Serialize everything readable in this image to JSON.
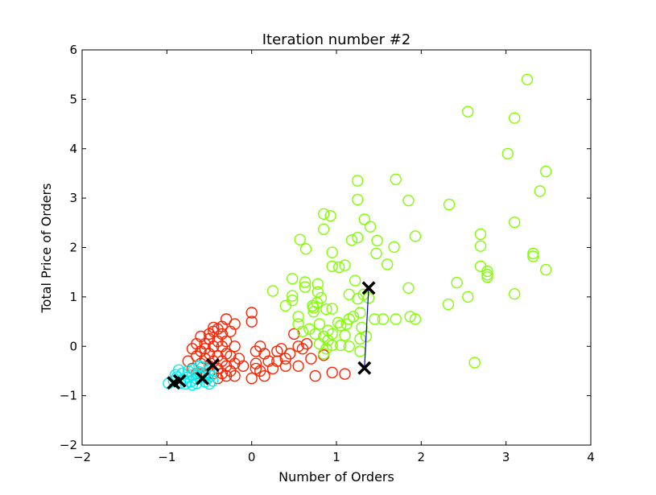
{
  "chart_data": {
    "type": "scatter",
    "title": "Iteration number #2",
    "xlabel": "Number of Orders",
    "ylabel": "Total Price of Orders",
    "xlim": [
      -2,
      4
    ],
    "ylim": [
      -2,
      6
    ],
    "xticks": [
      "−2",
      "−1",
      "0",
      "1",
      "2",
      "3",
      "4"
    ],
    "yticks": [
      "−2",
      "−1",
      "0",
      "1",
      "2",
      "3",
      "4",
      "5",
      "6"
    ],
    "grid": false,
    "colors": {
      "cluster_red": "#ff2200",
      "cluster_green": "#80ff00",
      "cluster_cyan": "#00f0f0",
      "centroid": "#000000",
      "trail": "#0000cc"
    },
    "series": [
      {
        "color": "#ff2200",
        "points": [
          [
            -0.75,
            -0.3
          ],
          [
            -0.7,
            -0.45
          ],
          [
            -0.65,
            -0.2
          ],
          [
            -0.65,
            -0.55
          ],
          [
            -0.6,
            -0.35
          ],
          [
            -0.6,
            -0.1
          ],
          [
            -0.55,
            -0.6
          ],
          [
            -0.55,
            -0.25
          ],
          [
            -0.55,
            0.05
          ],
          [
            -0.5,
            -0.4
          ],
          [
            -0.5,
            -0.15
          ],
          [
            -0.5,
            0.15
          ],
          [
            -0.45,
            -0.55
          ],
          [
            -0.45,
            -0.3
          ],
          [
            -0.45,
            0.0
          ],
          [
            -0.45,
            0.3
          ],
          [
            -0.4,
            -0.65
          ],
          [
            -0.4,
            -0.45
          ],
          [
            -0.4,
            -0.2
          ],
          [
            -0.4,
            0.1
          ],
          [
            -0.4,
            0.35
          ],
          [
            -0.35,
            -0.55
          ],
          [
            -0.35,
            -0.3
          ],
          [
            -0.35,
            0.0
          ],
          [
            -0.35,
            0.25
          ],
          [
            -0.3,
            -0.6
          ],
          [
            -0.3,
            -0.4
          ],
          [
            -0.3,
            -0.15
          ],
          [
            -0.3,
            0.1
          ],
          [
            -0.3,
            0.55
          ],
          [
            -0.25,
            -0.5
          ],
          [
            -0.25,
            -0.2
          ],
          [
            -0.25,
            0.3
          ],
          [
            -0.2,
            -0.6
          ],
          [
            -0.2,
            -0.35
          ],
          [
            -0.2,
            0.0
          ],
          [
            -0.2,
            0.45
          ],
          [
            -0.15,
            -0.25
          ],
          [
            -0.55,
            -0.05
          ],
          [
            -0.5,
            0.25
          ],
          [
            -0.45,
            0.38
          ],
          [
            -0.7,
            -0.05
          ],
          [
            -0.65,
            0.05
          ],
          [
            -0.6,
            0.2
          ],
          [
            -0.35,
            0.4
          ],
          [
            0.0,
            -0.65
          ],
          [
            0.05,
            -0.45
          ],
          [
            0.0,
            0.5
          ],
          [
            0.0,
            0.68
          ],
          [
            0.05,
            -0.35
          ],
          [
            0.1,
            -0.5
          ],
          [
            0.15,
            -0.15
          ],
          [
            0.15,
            -0.6
          ],
          [
            0.2,
            -0.3
          ],
          [
            0.25,
            -0.45
          ],
          [
            0.3,
            -0.1
          ],
          [
            0.3,
            -0.3
          ],
          [
            0.35,
            -0.05
          ],
          [
            0.4,
            -0.25
          ],
          [
            0.45,
            -0.15
          ],
          [
            0.5,
            0.25
          ],
          [
            0.55,
            0.0
          ],
          [
            0.6,
            -0.05
          ],
          [
            0.65,
            0.05
          ],
          [
            0.7,
            -0.25
          ],
          [
            0.55,
            -0.4
          ],
          [
            0.4,
            -0.4
          ],
          [
            0.75,
            -0.6
          ],
          [
            0.85,
            -0.18
          ],
          [
            0.95,
            -0.53
          ],
          [
            1.1,
            -0.56
          ],
          [
            0.1,
            0.0
          ],
          [
            -0.1,
            -0.4
          ],
          [
            0.05,
            -0.1
          ]
        ]
      },
      {
        "color": "#80ff00",
        "points": [
          [
            3.25,
            5.4
          ],
          [
            2.55,
            4.75
          ],
          [
            3.1,
            4.62
          ],
          [
            3.02,
            3.9
          ],
          [
            3.47,
            3.54
          ],
          [
            1.7,
            3.38
          ],
          [
            1.25,
            3.35
          ],
          [
            3.4,
            3.14
          ],
          [
            1.25,
            2.97
          ],
          [
            1.85,
            2.95
          ],
          [
            2.33,
            2.87
          ],
          [
            0.85,
            2.68
          ],
          [
            0.93,
            2.64
          ],
          [
            1.33,
            2.57
          ],
          [
            1.4,
            2.42
          ],
          [
            0.85,
            2.37
          ],
          [
            2.7,
            2.27
          ],
          [
            1.93,
            2.23
          ],
          [
            1.25,
            2.2
          ],
          [
            1.18,
            2.15
          ],
          [
            0.57,
            2.16
          ],
          [
            1.48,
            2.14
          ],
          [
            1.68,
            2.01
          ],
          [
            2.7,
            2.03
          ],
          [
            3.1,
            2.51
          ],
          [
            0.64,
            1.97
          ],
          [
            0.95,
            1.9
          ],
          [
            1.47,
            1.88
          ],
          [
            3.32,
            1.88
          ],
          [
            3.32,
            1.82
          ],
          [
            0.95,
            1.62
          ],
          [
            1.03,
            1.6
          ],
          [
            1.1,
            1.64
          ],
          [
            1.6,
            1.66
          ],
          [
            2.7,
            1.62
          ],
          [
            2.78,
            1.52
          ],
          [
            2.78,
            1.45
          ],
          [
            2.78,
            1.4
          ],
          [
            3.47,
            1.55
          ],
          [
            0.48,
            1.37
          ],
          [
            0.63,
            1.3
          ],
          [
            0.63,
            1.2
          ],
          [
            0.78,
            1.26
          ],
          [
            1.22,
            1.33
          ],
          [
            2.42,
            1.29
          ],
          [
            1.85,
            1.18
          ],
          [
            0.25,
            1.12
          ],
          [
            0.78,
            1.1
          ],
          [
            1.15,
            1.05
          ],
          [
            1.32,
            1.05
          ],
          [
            1.38,
            0.98
          ],
          [
            1.25,
            0.96
          ],
          [
            3.1,
            1.06
          ],
          [
            2.55,
            1.0
          ],
          [
            0.48,
            1.02
          ],
          [
            0.48,
            0.93
          ],
          [
            0.82,
            0.98
          ],
          [
            0.77,
            0.88
          ],
          [
            0.72,
            0.82
          ],
          [
            0.4,
            0.82
          ],
          [
            0.73,
            0.78
          ],
          [
            0.73,
            0.7
          ],
          [
            0.88,
            0.75
          ],
          [
            0.95,
            0.76
          ],
          [
            2.32,
            0.85
          ],
          [
            0.55,
            0.6
          ],
          [
            0.55,
            0.45
          ],
          [
            0.8,
            0.45
          ],
          [
            1.2,
            0.6
          ],
          [
            1.28,
            0.68
          ],
          [
            1.15,
            0.55
          ],
          [
            1.45,
            0.55
          ],
          [
            1.55,
            0.55
          ],
          [
            1.7,
            0.55
          ],
          [
            1.87,
            0.6
          ],
          [
            1.93,
            0.55
          ],
          [
            0.9,
            0.32
          ],
          [
            0.95,
            0.25
          ],
          [
            1.02,
            0.48
          ],
          [
            1.05,
            0.42
          ],
          [
            1.12,
            0.45
          ],
          [
            0.85,
            0.2
          ],
          [
            0.9,
            0.12
          ],
          [
            1.1,
            0.22
          ],
          [
            1.28,
            0.15
          ],
          [
            1.3,
            0.38
          ],
          [
            1.35,
            0.2
          ],
          [
            0.8,
            0.05
          ],
          [
            0.88,
            -0.05
          ],
          [
            1.05,
            0.02
          ],
          [
            1.15,
            0.0
          ],
          [
            1.28,
            -0.1
          ],
          [
            0.85,
            -0.15
          ],
          [
            0.95,
            0.02
          ],
          [
            0.6,
            0.3
          ],
          [
            0.68,
            0.35
          ],
          [
            0.75,
            0.25
          ],
          [
            2.63,
            -0.33
          ]
        ]
      },
      {
        "color": "#00f0f0",
        "points": [
          [
            -0.98,
            -0.75
          ],
          [
            -0.92,
            -0.7
          ],
          [
            -0.88,
            -0.62
          ],
          [
            -0.85,
            -0.75
          ],
          [
            -0.82,
            -0.55
          ],
          [
            -0.8,
            -0.68
          ],
          [
            -0.78,
            -0.76
          ],
          [
            -0.75,
            -0.5
          ],
          [
            -0.75,
            -0.62
          ],
          [
            -0.72,
            -0.72
          ],
          [
            -0.7,
            -0.58
          ],
          [
            -0.68,
            -0.47
          ],
          [
            -0.65,
            -0.66
          ],
          [
            -0.65,
            -0.75
          ],
          [
            -0.62,
            -0.52
          ],
          [
            -0.6,
            -0.62
          ],
          [
            -0.58,
            -0.42
          ],
          [
            -0.55,
            -0.72
          ],
          [
            -0.55,
            -0.55
          ],
          [
            -0.52,
            -0.65
          ],
          [
            -0.5,
            -0.48
          ],
          [
            -0.5,
            -0.76
          ],
          [
            -0.48,
            -0.6
          ],
          [
            -0.46,
            -0.7
          ],
          [
            -0.9,
            -0.58
          ],
          [
            -0.86,
            -0.48
          ],
          [
            -0.62,
            -0.4
          ],
          [
            -0.7,
            -0.78
          ]
        ]
      }
    ],
    "centroids": [
      {
        "color": "#000000",
        "trail": [
          [
            -0.92,
            -0.74
          ],
          [
            -0.85,
            -0.7
          ]
        ]
      },
      {
        "color": "#000000",
        "trail": [
          [
            -0.58,
            -0.65
          ],
          [
            -0.46,
            -0.38
          ]
        ]
      },
      {
        "color": "#000000",
        "trail": [
          [
            1.33,
            -0.44
          ],
          [
            1.38,
            1.18
          ]
        ]
      }
    ]
  }
}
